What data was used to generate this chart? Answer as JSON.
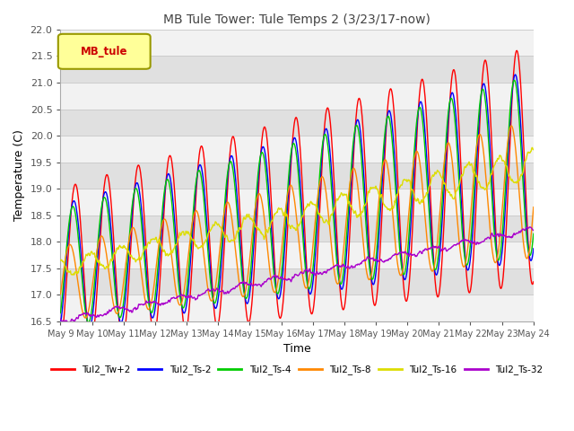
{
  "title": "MB Tule Tower: Tule Temps 2 (3/23/17-now)",
  "xlabel": "Time",
  "ylabel": "Temperature (C)",
  "ylim": [
    16.5,
    22.0
  ],
  "yticks": [
    16.5,
    17.0,
    17.5,
    18.0,
    18.5,
    19.0,
    19.5,
    20.0,
    20.5,
    21.0,
    21.5,
    22.0
  ],
  "xtick_labels": [
    "May 9",
    "May 10",
    "May 11",
    "May 12",
    "May 13",
    "May 14",
    "May 15",
    "May 16",
    "May 17",
    "May 18",
    "May 19",
    "May 20",
    "May 21",
    "May 22",
    "May 23",
    "May 24"
  ],
  "series_colors": {
    "Tul2_Tw+2": "#ff0000",
    "Tul2_Ts-2": "#0000ff",
    "Tul2_Ts-4": "#00cc00",
    "Tul2_Ts-8": "#ff8800",
    "Tul2_Ts-16": "#dddd00",
    "Tul2_Ts-32": "#aa00cc"
  },
  "legend_label": "MB_tule",
  "legend_color": "#cc0000",
  "bg_color": "#ffffff",
  "strip_colors": [
    "#f0f0f0",
    "#e0e0e0"
  ],
  "n_points": 1000
}
